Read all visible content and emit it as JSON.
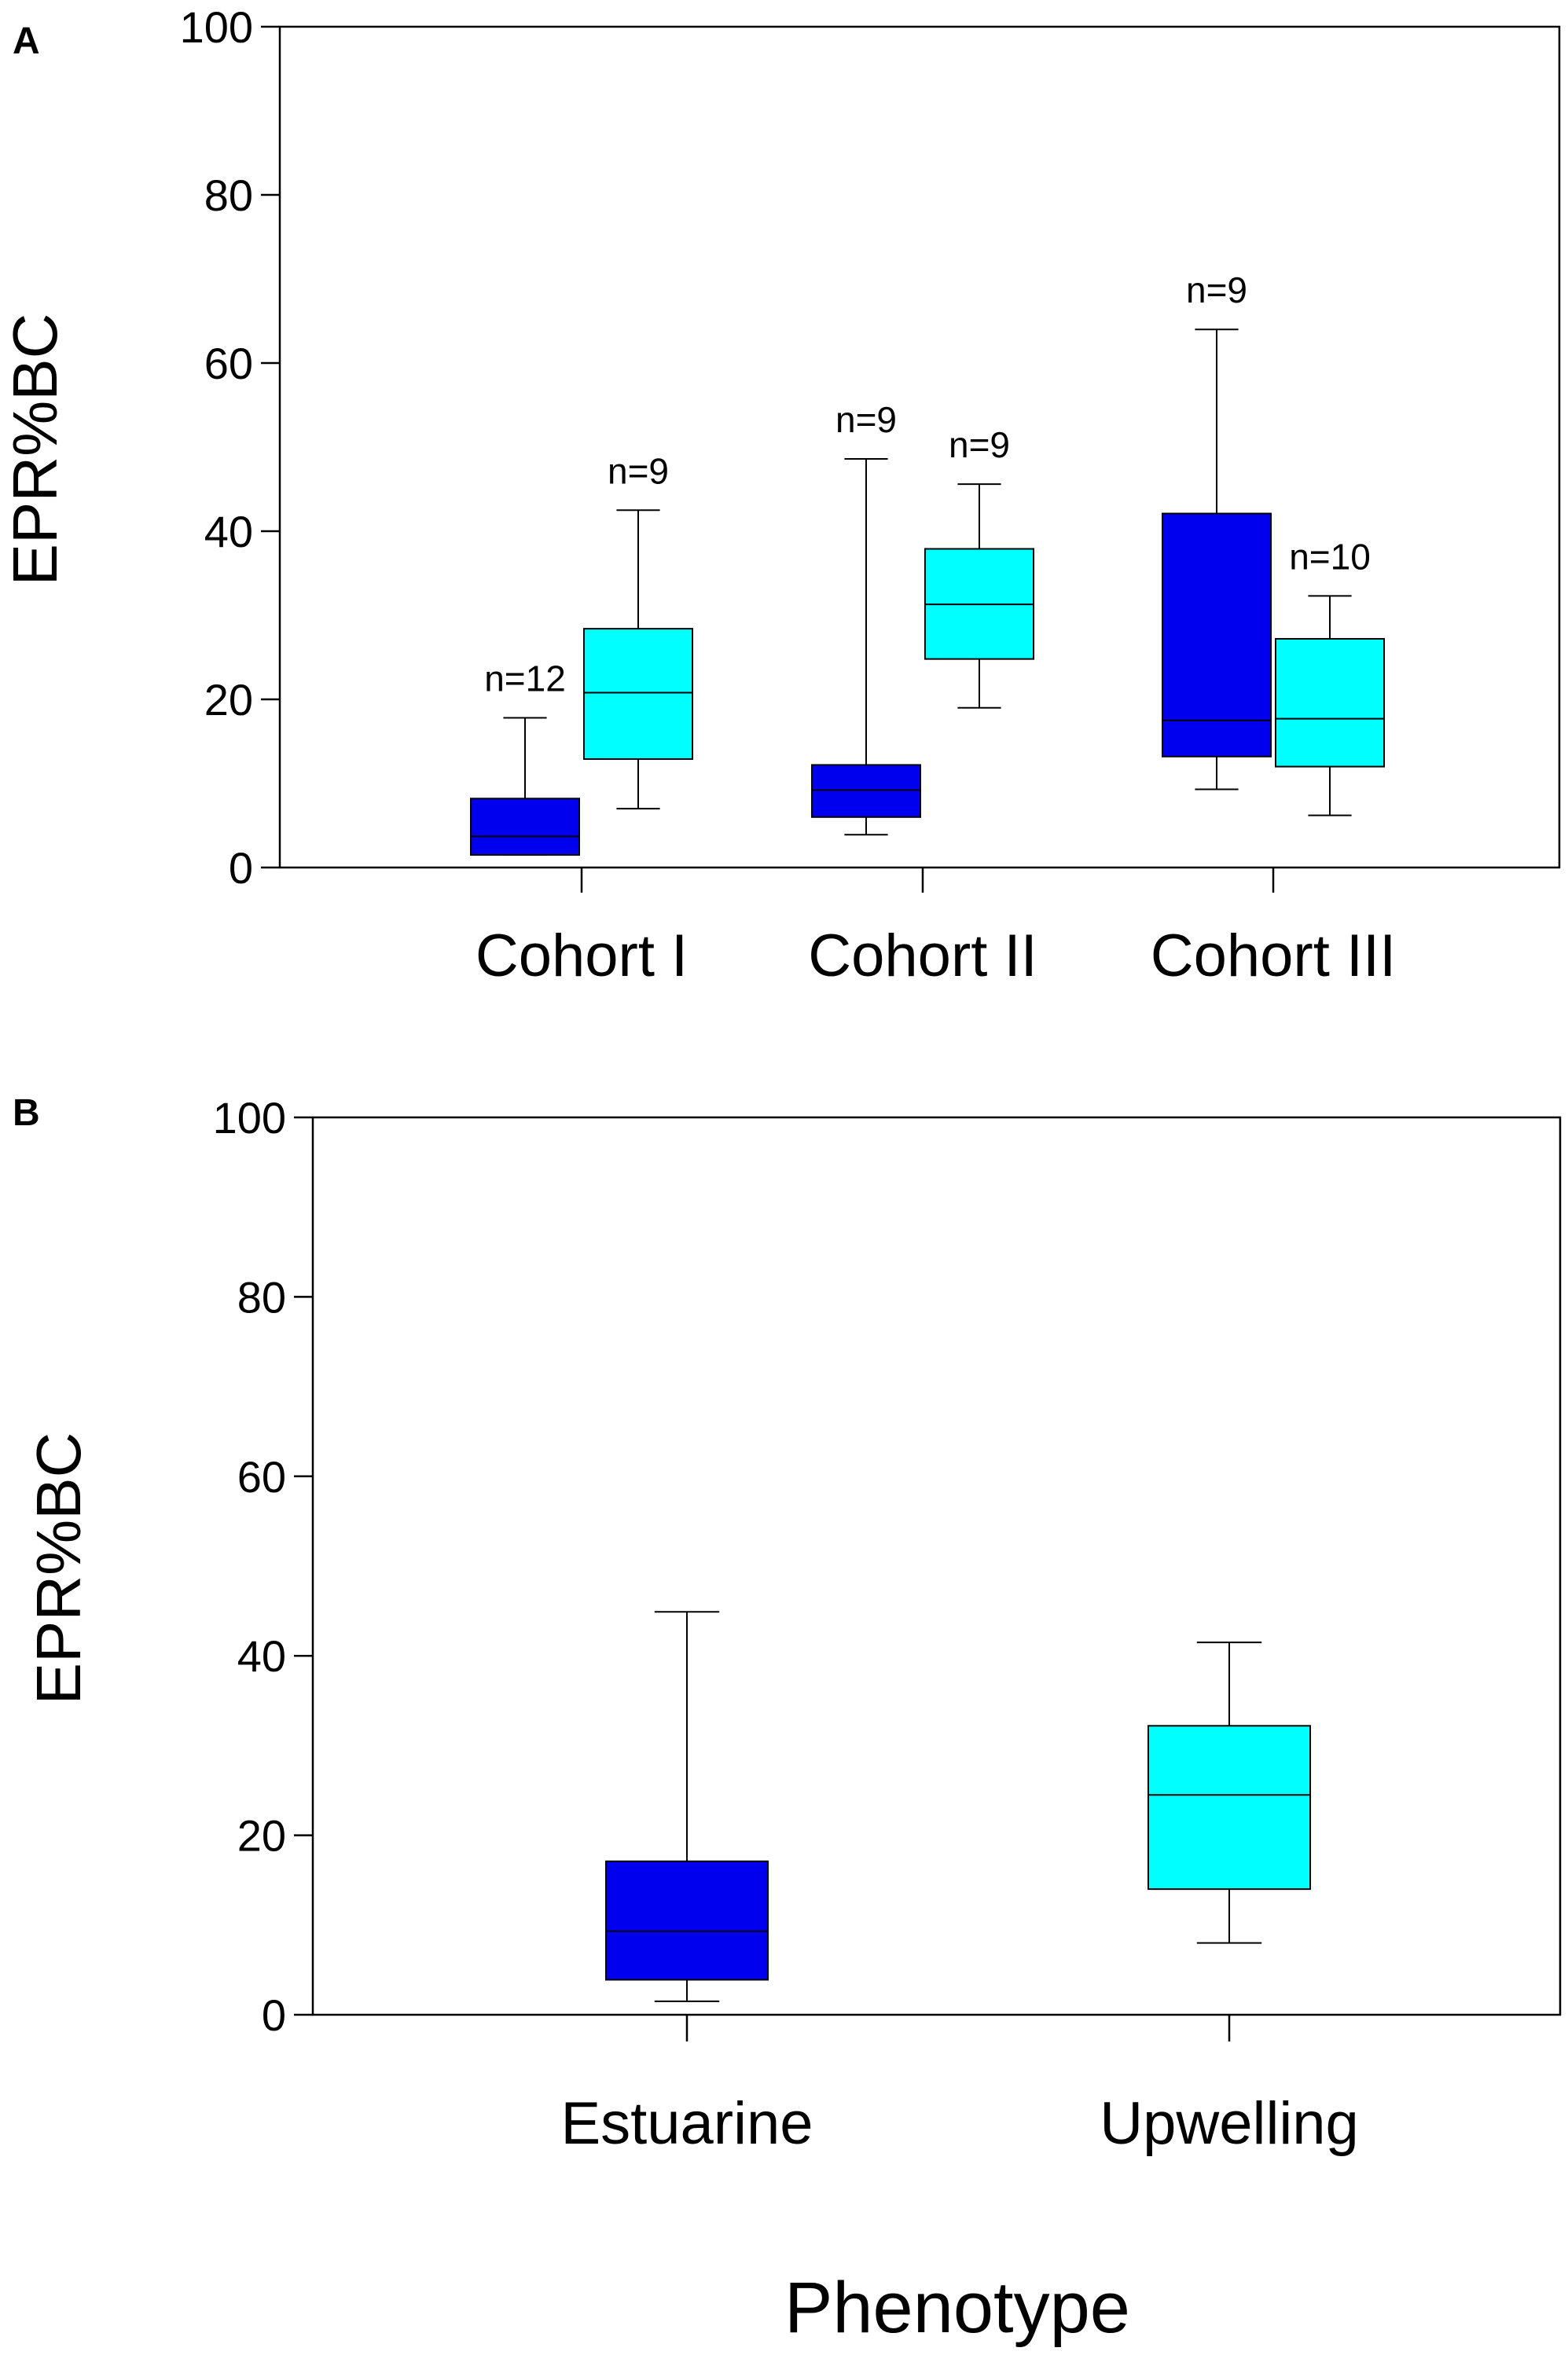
{
  "colors": {
    "estuarine": "#0000ee",
    "upwelling": "#00ffff",
    "axis": "#000000"
  },
  "chart_data": [
    {
      "panel": "A",
      "type": "box",
      "ylabel": "EPR%BC",
      "xlabel": "",
      "ylim": [
        0,
        100
      ],
      "yticks": [
        "0",
        "20",
        "40",
        "60",
        "80",
        "100"
      ],
      "grid": false,
      "categories": [
        "Cohort I",
        "Cohort II",
        "Cohort III"
      ],
      "series": [
        {
          "name": "Estuarine",
          "color_key": "estuarine",
          "boxes": [
            {
              "category": "Cohort I",
              "min": 1.5,
              "q1": 1.5,
              "median": 3.7,
              "q3": 8.2,
              "max": 17.8,
              "n": "n=12"
            },
            {
              "category": "Cohort II",
              "min": 3.9,
              "q1": 6.0,
              "median": 9.2,
              "q3": 12.2,
              "max": 48.6,
              "n": "n=9"
            },
            {
              "category": "Cohort III",
              "min": 9.3,
              "q1": 13.2,
              "median": 17.5,
              "q3": 42.1,
              "max": 64.0,
              "n": "n=9"
            }
          ]
        },
        {
          "name": "Upwelling",
          "color_key": "upwelling",
          "boxes": [
            {
              "category": "Cohort I",
              "min": 7.0,
              "q1": 12.9,
              "median": 20.8,
              "q3": 28.4,
              "max": 42.5,
              "n": "n=9"
            },
            {
              "category": "Cohort II",
              "min": 19.0,
              "q1": 24.8,
              "median": 31.3,
              "q3": 37.9,
              "max": 45.6,
              "n": "n=9"
            },
            {
              "category": "Cohort III",
              "min": 6.2,
              "q1": 12.0,
              "median": 17.7,
              "q3": 27.2,
              "max": 32.3,
              "n": "n=10"
            }
          ]
        }
      ]
    },
    {
      "panel": "B",
      "type": "box",
      "ylabel": "EPR%BC",
      "xlabel": "Phenotype",
      "ylim": [
        0,
        100
      ],
      "yticks": [
        "0",
        "20",
        "40",
        "60",
        "80",
        "100"
      ],
      "grid": false,
      "categories": [
        "Estuarine",
        "Upwelling"
      ],
      "boxes": [
        {
          "category": "Estuarine",
          "color_key": "estuarine",
          "min": 1.5,
          "q1": 3.9,
          "median": 9.3,
          "q3": 17.1,
          "max": 44.9
        },
        {
          "category": "Upwelling",
          "color_key": "upwelling",
          "min": 8.0,
          "q1": 14.0,
          "median": 24.5,
          "q3": 32.2,
          "max": 41.5
        }
      ]
    }
  ]
}
